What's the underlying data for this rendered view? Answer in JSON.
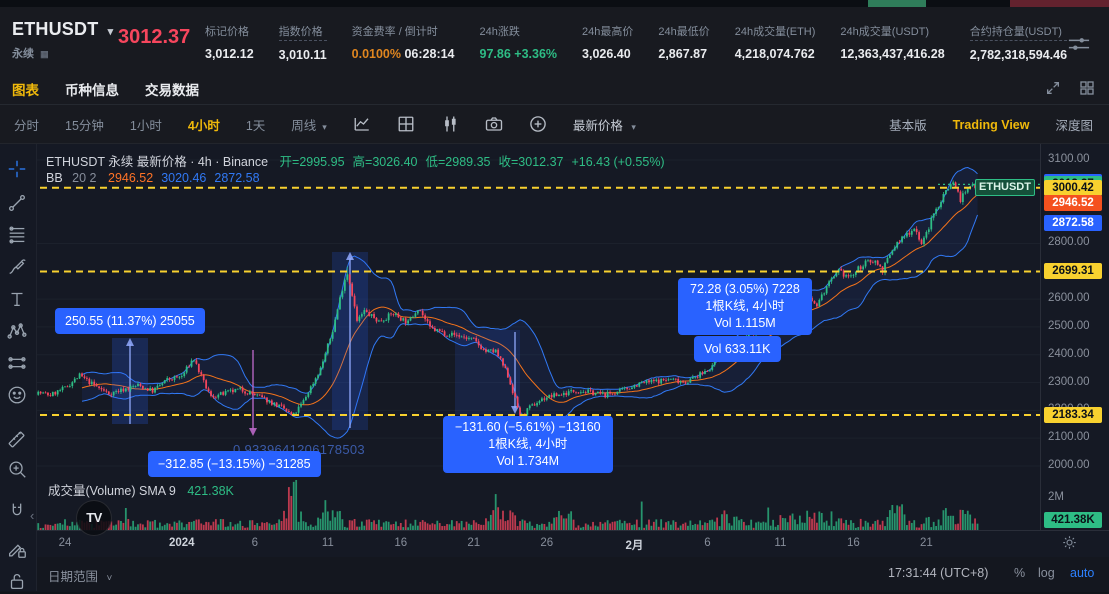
{
  "top_strip": {
    "base_color": "#0b0e13",
    "green_color": "#2f7d5a",
    "red_color": "#63222e"
  },
  "header": {
    "symbol": "ETHUSDT",
    "contract_type": "永续",
    "last_price": "3012.37",
    "price_color": "#f6465d",
    "stats": [
      {
        "id": "mark-price",
        "label": "标记价格",
        "underline": false,
        "parts": [
          {
            "text": "3,012.12"
          }
        ]
      },
      {
        "id": "index-price",
        "label": "指数价格",
        "underline": true,
        "parts": [
          {
            "text": "3,010.11"
          }
        ]
      },
      {
        "id": "funding-countdown",
        "label": "资金费率 / 倒计时",
        "underline": false,
        "parts": [
          {
            "text": "0.0100%",
            "color": "#e0861f"
          },
          {
            "text": " 06:28:14"
          }
        ]
      },
      {
        "id": "change-24h",
        "label": "24h涨跌",
        "underline": false,
        "parts": [
          {
            "text": "97.86 +3.36%",
            "color": "#2ebd85"
          }
        ]
      },
      {
        "id": "high-24h",
        "label": "24h最高价",
        "underline": false,
        "parts": [
          {
            "text": "3,026.40"
          }
        ]
      },
      {
        "id": "low-24h",
        "label": "24h最低价",
        "underline": false,
        "parts": [
          {
            "text": "2,867.87"
          }
        ]
      },
      {
        "id": "volume-24h-eth",
        "label": "24h成交量(ETH)",
        "underline": false,
        "parts": [
          {
            "text": "4,218,074.762"
          }
        ]
      },
      {
        "id": "volume-24h-usdt",
        "label": "24h成交量(USDT)",
        "underline": false,
        "parts": [
          {
            "text": "12,363,437,416.28"
          }
        ]
      },
      {
        "id": "open-interest-usdt",
        "label": "合约持仓量(USDT)",
        "underline": true,
        "parts": [
          {
            "text": "2,782,318,594.46"
          }
        ]
      }
    ]
  },
  "page_tabs": [
    {
      "id": "chart",
      "label": "图表",
      "active": true
    },
    {
      "id": "coin-info",
      "label": "币种信息",
      "active": false
    },
    {
      "id": "trading-data",
      "label": "交易数据",
      "active": false
    }
  ],
  "chart_toolbar": {
    "timeframes": [
      {
        "label": "分时",
        "active": false
      },
      {
        "label": "15分钟",
        "active": false
      },
      {
        "label": "1小时",
        "active": false
      },
      {
        "label": "4小时",
        "active": true
      },
      {
        "label": "1天",
        "active": false
      },
      {
        "label": "周线",
        "active": false,
        "caret": true
      }
    ],
    "price_mode": "最新价格",
    "view_modes": [
      {
        "label": "基本版",
        "active": false
      },
      {
        "label": "Trading View",
        "active": true
      },
      {
        "label": "深度图",
        "active": false
      }
    ]
  },
  "legend": {
    "title": "ETHUSDT 永续 最新价格 · 4h · Binance",
    "ohlc": [
      "开=2995.95",
      "高=3026.40",
      "低=2989.35",
      "收=3012.37",
      "+16.43 (+0.55%)"
    ],
    "ohlc_color": "#2ebd85",
    "bb_label": "BB",
    "bb_params": "20 2",
    "bb_values": [
      {
        "text": "2946.52",
        "color": "#ff7326"
      },
      {
        "text": "3020.46",
        "color": "#3179f5"
      },
      {
        "text": "2872.58",
        "color": "#3179f5"
      }
    ]
  },
  "volume_pane": {
    "label": "成交量(Volume) SMA 9",
    "value": "421.38K"
  },
  "annotations": {
    "measure_up_left": "250.55 (11.37%) 25055",
    "measure_up_right": [
      "72.28 (3.05%) 7228",
      "1根K线, 4小时",
      "Vol 1.115M"
    ],
    "measure_vol_behind": "Vol 633.11K",
    "measure_down_mid": [
      "−131.60 (−5.61%) −13160",
      "1根K线, 4小时",
      "Vol 1.734M"
    ],
    "measure_down_left": "−312.85 (−13.15%) −31285",
    "faint_number": "0.9339641206178503",
    "symbol_tag": "ETHUSDT"
  },
  "price_axis": {
    "plain_labels": [
      {
        "text": "3100.00",
        "price": 3100
      },
      {
        "text": "2800.00",
        "price": 2800
      },
      {
        "text": "2600.00",
        "price": 2600
      },
      {
        "text": "2500.00",
        "price": 2500
      },
      {
        "text": "2400.00",
        "price": 2400
      },
      {
        "text": "2300.00",
        "price": 2300
      },
      {
        "text": "2200.00",
        "price": 2200
      },
      {
        "text": "2100.00",
        "price": 2100
      },
      {
        "text": "2000.00",
        "price": 2000
      }
    ],
    "badges": [
      {
        "text": "3020.46",
        "price": 3020.46,
        "bg": "#2962ff",
        "fg": "#ffffff"
      },
      {
        "text": "3012.37",
        "price": 3012.37,
        "bg": "#2ebd85",
        "fg": "#0c1118"
      },
      {
        "text": "3000.42",
        "price": 3000.42,
        "bg": "#f8d12f",
        "fg": "#0c1118"
      },
      {
        "text": "2946.52",
        "price": 2946.52,
        "bg": "#f4511e",
        "fg": "#ffffff"
      },
      {
        "text": "2872.58",
        "price": 2872.58,
        "bg": "#2962ff",
        "fg": "#ffffff"
      },
      {
        "text": "2699.31",
        "price": 2699.31,
        "bg": "#f8d12f",
        "fg": "#0c1118"
      },
      {
        "text": "2183.34",
        "price": 2183.34,
        "bg": "#f8d12f",
        "fg": "#0c1118"
      }
    ],
    "volume_scale_label": "2M",
    "volume_badge": {
      "text": "421.38K",
      "bg": "#2ebd85",
      "fg": "#0c1118"
    }
  },
  "time_axis": {
    "ticks": [
      {
        "label": "24",
        "day": 2,
        "bold": false
      },
      {
        "label": "2024",
        "day": 10,
        "bold": true
      },
      {
        "label": "6",
        "day": 15,
        "bold": false
      },
      {
        "label": "11",
        "day": 20,
        "bold": false
      },
      {
        "label": "16",
        "day": 25,
        "bold": false
      },
      {
        "label": "21",
        "day": 30,
        "bold": false
      },
      {
        "label": "26",
        "day": 35,
        "bold": false
      },
      {
        "label": "2月",
        "day": 41,
        "bold": true
      },
      {
        "label": "6",
        "day": 46,
        "bold": false
      },
      {
        "label": "11",
        "day": 51,
        "bold": false
      },
      {
        "label": "16",
        "day": 56,
        "bold": false
      },
      {
        "label": "21",
        "day": 61,
        "bold": false
      }
    ]
  },
  "bottom_bar": {
    "date_range": "日期范围",
    "clock": "17:31:44 (UTC+8)",
    "percent": "%",
    "log": "log",
    "auto": "auto"
  },
  "icons": {
    "caret_down": "▾",
    "caret_small": "˅",
    "chevron_left": "‹",
    "text_tool": "T",
    "tv_logo": "TV",
    "perpetual_icon": "▦"
  },
  "chart_data": {
    "type": "candlestick",
    "symbol": "ETHUSDT 永续",
    "interval": "4h",
    "exchange": "Binance",
    "title": "ETHUSDT 永续 最新价格 · 4h · Binance",
    "latest_ohlc": {
      "open": 2995.95,
      "high": 3026.4,
      "low": 2989.35,
      "close": 3012.37,
      "change": 16.43,
      "change_pct": 0.55
    },
    "bollinger": {
      "period": 20,
      "stdev": 2,
      "basis": 2946.52,
      "upper": 3020.46,
      "lower": 2872.58
    },
    "dashed_levels": [
      3000.42,
      2699.31,
      2183.34
    ],
    "y_axis": {
      "min": 2000,
      "max": 3100
    },
    "x_tick_labels": [
      "24",
      "2024",
      "6",
      "11",
      "16",
      "21",
      "26",
      "2月",
      "6",
      "11",
      "16",
      "21"
    ],
    "volume_sma9": "421.38K",
    "volume_scale_max": "2M",
    "price_anchors": [
      [
        0,
        2265
      ],
      [
        1,
        2255
      ],
      [
        2,
        2280
      ],
      [
        3,
        2325
      ],
      [
        4,
        2290
      ],
      [
        5,
        2260
      ],
      [
        6,
        2275
      ],
      [
        7,
        2290
      ],
      [
        8,
        2270
      ],
      [
        9,
        2310
      ],
      [
        10,
        2322
      ],
      [
        10.8,
        2388
      ],
      [
        11.5,
        2300
      ],
      [
        12,
        2248
      ],
      [
        13,
        2262
      ],
      [
        14,
        2275
      ],
      [
        15,
        2256
      ],
      [
        16,
        2232
      ],
      [
        17,
        2205
      ],
      [
        17.6,
        2178
      ],
      [
        18.3,
        2230
      ],
      [
        19.5,
        2350
      ],
      [
        20.3,
        2480
      ],
      [
        21.0,
        2640
      ],
      [
        21.3,
        2700
      ],
      [
        21.6,
        2640
      ],
      [
        22,
        2520
      ],
      [
        22.5,
        2556
      ],
      [
        23.5,
        2520
      ],
      [
        24.5,
        2548
      ],
      [
        25.5,
        2515
      ],
      [
        26.2,
        2572
      ],
      [
        27,
        2495
      ],
      [
        28,
        2478
      ],
      [
        29,
        2468
      ],
      [
        30,
        2452
      ],
      [
        30.8,
        2412
      ],
      [
        31.5,
        2412
      ],
      [
        32.3,
        2330
      ],
      [
        32.9,
        2230
      ],
      [
        33.2,
        2172
      ],
      [
        33.8,
        2208
      ],
      [
        34.5,
        2235
      ],
      [
        35,
        2248
      ],
      [
        36,
        2258
      ],
      [
        37,
        2272
      ],
      [
        38,
        2265
      ],
      [
        39,
        2256
      ],
      [
        40,
        2268
      ],
      [
        40.8,
        2286
      ],
      [
        41.5,
        2298
      ],
      [
        42.5,
        2305
      ],
      [
        43.5,
        2312
      ],
      [
        44.5,
        2302
      ],
      [
        45.5,
        2328
      ],
      [
        46.3,
        2358
      ],
      [
        47,
        2412
      ],
      [
        48,
        2442
      ],
      [
        49,
        2478
      ],
      [
        50,
        2508
      ],
      [
        51,
        2542
      ],
      [
        52,
        2562
      ],
      [
        52.8,
        2635
      ],
      [
        53.4,
        2572
      ],
      [
        54.2,
        2645
      ],
      [
        55,
        2698
      ],
      [
        55.8,
        2678
      ],
      [
        56.6,
        2722
      ],
      [
        57.4,
        2742
      ],
      [
        58,
        2705
      ],
      [
        58.8,
        2788
      ],
      [
        59.6,
        2832
      ],
      [
        60.2,
        2858
      ],
      [
        60.7,
        2795
      ],
      [
        61.5,
        2905
      ],
      [
        62,
        2955
      ],
      [
        62.4,
        3000
      ],
      [
        62.9,
        3022
      ],
      [
        63.3,
        2958
      ],
      [
        63.7,
        2985
      ],
      [
        64.1,
        3010
      ],
      [
        64.5,
        3012.37
      ]
    ],
    "key_extremes": {
      "spike_high": {
        "day": 21.3,
        "price": 2717
      },
      "swing_low": {
        "day": 33.2,
        "price": 2166
      },
      "recent_high": {
        "day": 62.9,
        "price": 3026.4
      }
    }
  }
}
